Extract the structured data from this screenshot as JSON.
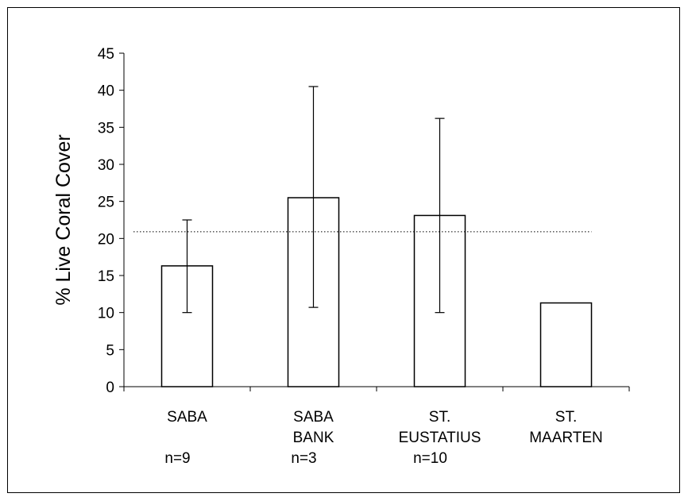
{
  "chart_data": {
    "type": "bar",
    "title": "",
    "ylabel": "% Live Coral Cover",
    "xlabel": "",
    "ylim": [
      0,
      45
    ],
    "yticks": [
      0,
      5,
      10,
      15,
      20,
      25,
      30,
      35,
      40,
      45
    ],
    "categories": [
      {
        "lines": [
          "SABA"
        ],
        "n": "n=9"
      },
      {
        "lines": [
          "SABA",
          "BANK"
        ],
        "n": "n=3"
      },
      {
        "lines": [
          "ST.",
          "EUSTATIUS"
        ],
        "n": "n=10"
      },
      {
        "lines": [
          "ST.",
          "MAARTEN"
        ],
        "n": ""
      }
    ],
    "values": [
      16.3,
      25.5,
      23.1,
      11.3
    ],
    "error_low": [
      10.0,
      10.7,
      10.0,
      null
    ],
    "error_high": [
      22.5,
      40.5,
      36.2,
      null
    ],
    "reference_line": 20.9,
    "bar_fill": "#ffffff",
    "bar_stroke": "#000000",
    "grid": false
  }
}
